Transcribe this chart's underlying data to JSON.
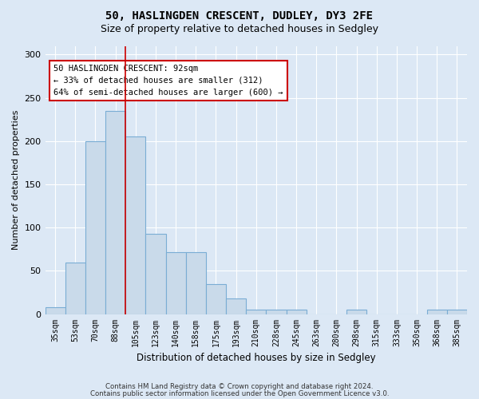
{
  "title1": "50, HASLINGDEN CRESCENT, DUDLEY, DY3 2FE",
  "title2": "Size of property relative to detached houses in Sedgley",
  "xlabel": "Distribution of detached houses by size in Sedgley",
  "ylabel": "Number of detached properties",
  "categories": [
    "35sqm",
    "53sqm",
    "70sqm",
    "88sqm",
    "105sqm",
    "123sqm",
    "140sqm",
    "158sqm",
    "175sqm",
    "193sqm",
    "210sqm",
    "228sqm",
    "245sqm",
    "263sqm",
    "280sqm",
    "298sqm",
    "315sqm",
    "333sqm",
    "350sqm",
    "368sqm",
    "385sqm"
  ],
  "values": [
    8,
    60,
    200,
    235,
    205,
    93,
    72,
    72,
    35,
    18,
    5,
    5,
    5,
    0,
    0,
    5,
    0,
    0,
    0,
    5,
    5
  ],
  "bar_color": "#c9daea",
  "bar_edge_color": "#7aadd4",
  "vline_color": "#cc0000",
  "vline_x_index": 3,
  "annotation_text": "50 HASLINGDEN CRESCENT: 92sqm\n← 33% of detached houses are smaller (312)\n64% of semi-detached houses are larger (600) →",
  "annotation_box_color": "white",
  "annotation_box_edge": "#cc0000",
  "bg_color": "#dce8f5",
  "footer1": "Contains HM Land Registry data © Crown copyright and database right 2024.",
  "footer2": "Contains public sector information licensed under the Open Government Licence v3.0.",
  "ylim": [
    0,
    310
  ],
  "yticks": [
    0,
    50,
    100,
    150,
    200,
    250,
    300
  ],
  "grid_color": "#ffffff",
  "title1_fontsize": 10,
  "title2_fontsize": 9
}
